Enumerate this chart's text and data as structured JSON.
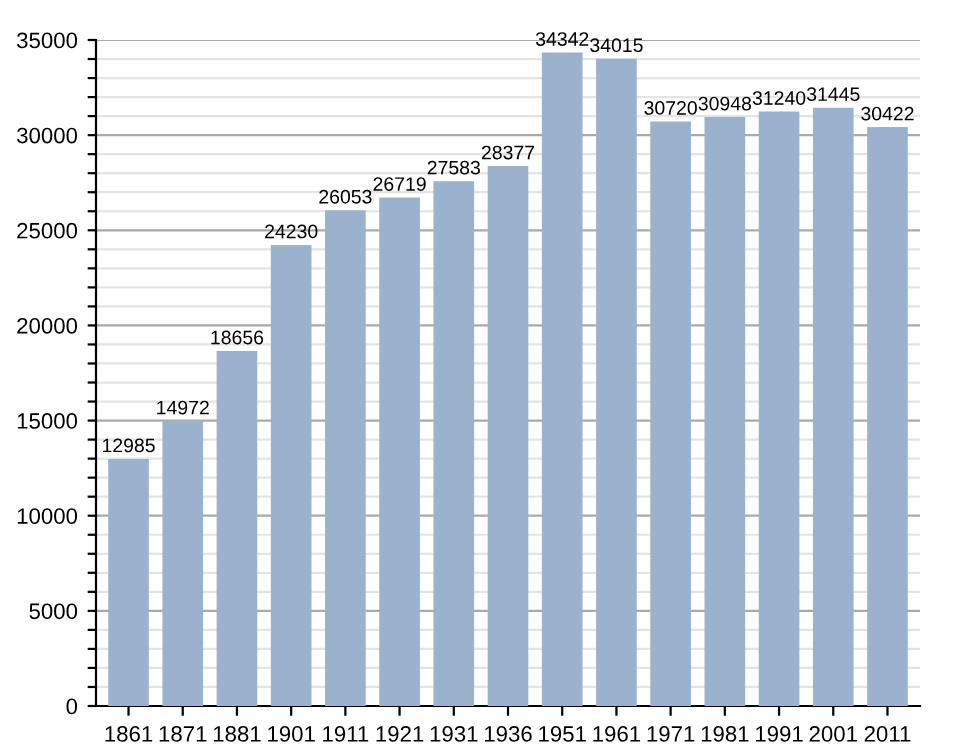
{
  "chart_data": {
    "type": "bar",
    "categories": [
      "1861",
      "1871",
      "1881",
      "1901",
      "1911",
      "1921",
      "1931",
      "1936",
      "1951",
      "1961",
      "1971",
      "1981",
      "1991",
      "2001",
      "2011"
    ],
    "values": [
      12985,
      14972,
      18656,
      24230,
      26053,
      26719,
      27583,
      28377,
      34342,
      34015,
      30720,
      30948,
      31240,
      31445,
      30422
    ],
    "color": "#9bb2cf",
    "ylim": [
      0,
      35000
    ],
    "yticks": [
      0,
      {
        "value": 1000,
        "label": null
      },
      {
        "value": 2000,
        "label": null
      },
      {
        "value": 3000,
        "label": null
      },
      {
        "value": 4000,
        "label": null
      },
      5000,
      {
        "value": 6000,
        "label": null
      },
      {
        "value": 7000,
        "label": null
      },
      {
        "value": 8000,
        "label": null
      },
      {
        "value": 9000,
        "label": null
      },
      10000,
      {
        "value": 11000,
        "label": null
      },
      {
        "value": 12000,
        "label": null
      },
      {
        "value": 13000,
        "label": null
      },
      {
        "value": 14000,
        "label": null
      },
      15000,
      {
        "value": 16000,
        "label": null
      },
      {
        "value": 17000,
        "label": null
      },
      {
        "value": 18000,
        "label": null
      },
      {
        "value": 19000,
        "label": null
      },
      20000,
      {
        "value": 21000,
        "label": null
      },
      {
        "value": 22000,
        "label": null
      },
      {
        "value": 23000,
        "label": null
      },
      {
        "value": 24000,
        "label": null
      },
      25000,
      {
        "value": 26000,
        "label": null
      },
      {
        "value": 27000,
        "label": null
      },
      {
        "value": 28000,
        "label": null
      },
      {
        "value": 29000,
        "label": null
      },
      30000,
      {
        "value": 31000,
        "label": null
      },
      {
        "value": 32000,
        "label": null
      },
      {
        "value": 33000,
        "label": null
      },
      {
        "value": 34000,
        "label": null
      },
      35000
    ],
    "grid": "y",
    "data_labels": true
  }
}
